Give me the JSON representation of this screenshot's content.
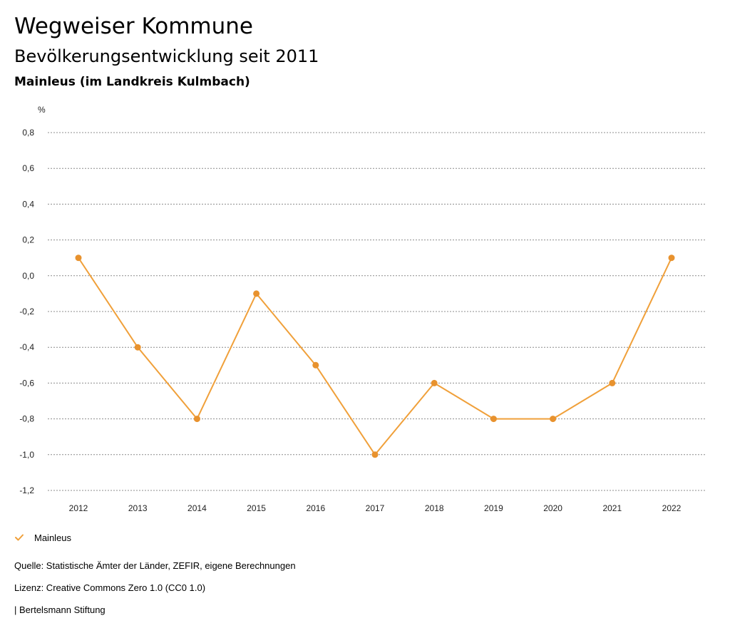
{
  "header": {
    "title": "Wegweiser Kommune",
    "subtitle": "Bevölkerungsentwicklung seit 2011",
    "region": "Mainleus (im Landkreis Kulmbach)"
  },
  "legend": {
    "label": "Mainleus",
    "icon": "check-icon"
  },
  "footer": {
    "source": "Quelle: Statistische Ämter der Länder, ZEFIR, eigene Berechnungen",
    "license": "Lizenz: Creative Commons Zero 1.0 (CC0 1.0)",
    "brand": "| Bertelsmann Stiftung"
  },
  "colors": {
    "series": "#F0A03A",
    "point": "#E8922E",
    "grid": "#8C8C8C"
  },
  "chart_data": {
    "type": "line",
    "title": "Bevölkerungsentwicklung seit 2011",
    "xlabel": "",
    "ylabel": "%",
    "categories": [
      "2012",
      "2013",
      "2014",
      "2015",
      "2016",
      "2017",
      "2018",
      "2019",
      "2020",
      "2021",
      "2022"
    ],
    "series": [
      {
        "name": "Mainleus",
        "values": [
          0.1,
          -0.4,
          -0.8,
          -0.1,
          -0.5,
          -1.0,
          -0.6,
          -0.8,
          -0.8,
          -0.6,
          0.1
        ]
      }
    ],
    "ylim": [
      -1.2,
      0.8
    ],
    "yticks": [
      0.8,
      0.6,
      0.4,
      0.2,
      0.0,
      -0.2,
      -0.4,
      -0.6,
      -0.8,
      -1.0,
      -1.2
    ],
    "ytick_labels": [
      "0,8",
      "0,6",
      "0,4",
      "0,2",
      "0,0",
      "-0,2",
      "-0,4",
      "-0,6",
      "-0,8",
      "-1,0",
      "-1,2"
    ],
    "grid": true,
    "legend": "bottom-left"
  }
}
